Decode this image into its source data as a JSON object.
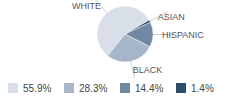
{
  "chart_data": {
    "type": "pie",
    "categories": [
      "WHITE",
      "BLACK",
      "HISPANIC",
      "ASIAN"
    ],
    "values": [
      55.9,
      28.3,
      14.4,
      1.4
    ],
    "value_labels": [
      "55.9%",
      "28.3%",
      "14.4%",
      "1.4%"
    ],
    "colors": [
      "#d9dfe8",
      "#a6b6c8",
      "#6f88a3",
      "#2e4e6e"
    ],
    "data_labels": true,
    "legend": "bottom"
  }
}
